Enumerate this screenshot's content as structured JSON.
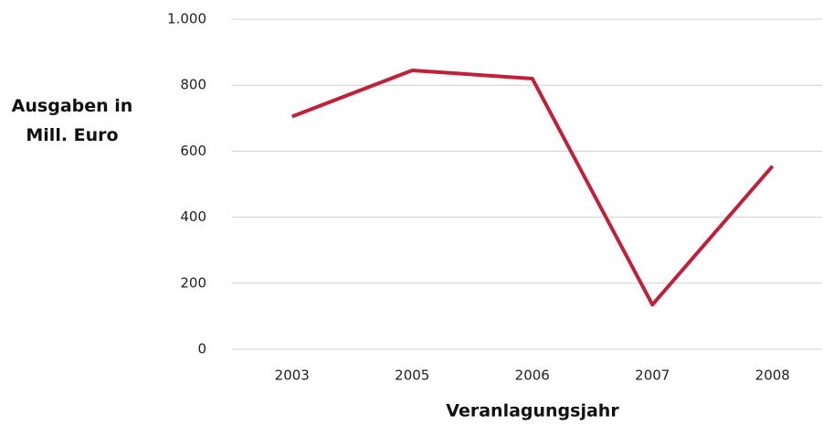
{
  "chart_data": {
    "type": "line",
    "y_label": "Ausgaben in Mill. Euro",
    "x_label": "Veranlagungsjahr",
    "categories": [
      "2003",
      "2005",
      "2006",
      "2007",
      "2008"
    ],
    "series": [
      {
        "name": "Ausgaben",
        "color": "#c0213a",
        "values": [
          705,
          845,
          820,
          135,
          555
        ]
      }
    ],
    "ylim": [
      0,
      1000
    ],
    "yticks": [
      0,
      200,
      400,
      600,
      800,
      {
        "value": 1000,
        "label": "1.000"
      }
    ],
    "grid": true
  }
}
